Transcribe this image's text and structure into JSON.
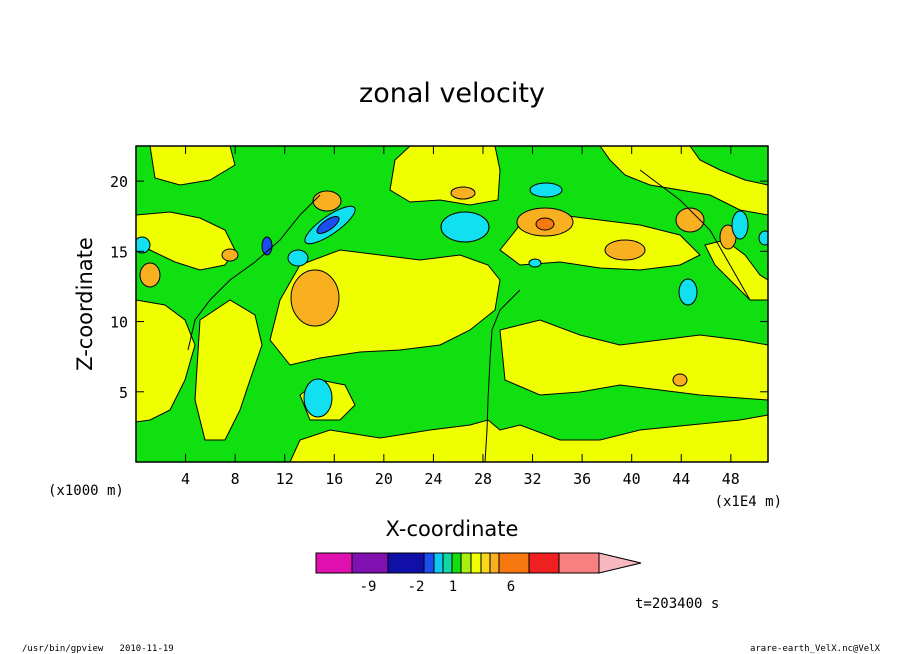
{
  "chart_data": {
    "type": "heatmap",
    "title": "zonal velocity",
    "xlabel": "X-coordinate",
    "ylabel": "Z-coordinate",
    "x_unit_left": "(x1000 m)",
    "x_unit_right": "(x1E4 m)",
    "x_ticks": [
      "4",
      "8",
      "12",
      "16",
      "20",
      "24",
      "28",
      "32",
      "36",
      "40",
      "44",
      "48"
    ],
    "x_tick_values": [
      4,
      8,
      12,
      16,
      20,
      24,
      28,
      32,
      36,
      40,
      44,
      48
    ],
    "y_ticks": [
      "5",
      "10",
      "15",
      "20"
    ],
    "y_tick_values": [
      5,
      10,
      15,
      20
    ],
    "xlim": [
      0,
      51
    ],
    "ylim": [
      0,
      22.5
    ],
    "time_label": "t=203400 s",
    "colorbar": {
      "colors": [
        "#e010b0",
        "#8010b0",
        "#1010a8",
        "#1a4ef0",
        "#10c8f0",
        "#10d8a0",
        "#10e010",
        "#a8f010",
        "#f0ff00",
        "#f8d818",
        "#f8b020",
        "#f87810",
        "#f02020",
        "#f88080",
        "#f8b8c0"
      ],
      "tick_labels": [
        "-9",
        "-2",
        "1",
        "6"
      ]
    },
    "regions": [
      {
        "level": "green",
        "color": "#10e010"
      },
      {
        "level": "yellow",
        "color": "#f0ff00"
      },
      {
        "level": "orange",
        "color": "#f8b020"
      },
      {
        "level": "cyan",
        "color": "#10e0f0"
      },
      {
        "level": "blue",
        "color": "#1a4ef0"
      }
    ]
  },
  "footer": {
    "left": "/usr/bin/gpview   2010-11-19",
    "right": "arare-earth_VelX.nc@VelX"
  }
}
